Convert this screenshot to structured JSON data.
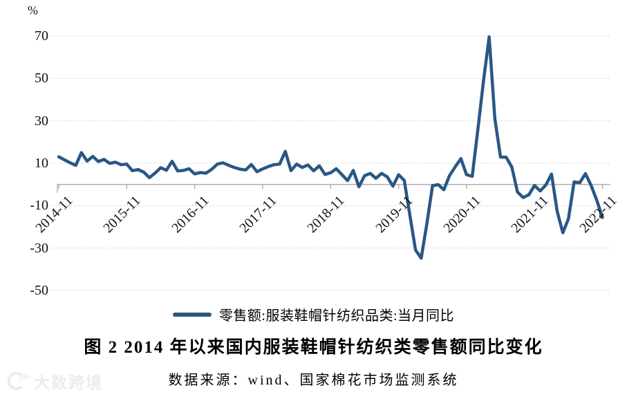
{
  "unit_label": "%",
  "legend": {
    "label": "零售额:服装鞋帽针纺织品类:当月同比"
  },
  "title": "图 2  2014 年以来国内服装鞋帽针纺织类零售额同比变化",
  "source": "数据来源：wind、国家棉花市场监测系统",
  "watermark": {
    "logo": "k100-logo",
    "text": "大数跨境"
  },
  "colors": {
    "line": "#2a5784",
    "grid": "#c4c4c4",
    "axis": "#aaaaaa",
    "text": "#111111",
    "watermark": "#ececec"
  },
  "chart_data": {
    "type": "line",
    "title": "图 2  2014 年以来国内服装鞋帽针纺织类零售额同比变化",
    "ylabel": "%",
    "ylim": [
      -50,
      70
    ],
    "y_ticks": [
      70,
      50,
      30,
      10,
      -10,
      -30,
      -50
    ],
    "x_tick_labels": [
      "2014-11",
      "2015-11",
      "2016-11",
      "2017-11",
      "2018-11",
      "2019-11",
      "2020-11",
      "2021-11",
      "2022-11"
    ],
    "grid": "horizontal-dotted",
    "legend_position": "bottom",
    "series": [
      {
        "name": "零售额:服装鞋帽针纺织品类:当月同比",
        "color": "#2a5784",
        "x": [
          "2014-11",
          "2014-12",
          "2015-01",
          "2015-02",
          "2015-03",
          "2015-04",
          "2015-05",
          "2015-06",
          "2015-07",
          "2015-08",
          "2015-09",
          "2015-10",
          "2015-11",
          "2015-12",
          "2016-01",
          "2016-02",
          "2016-03",
          "2016-04",
          "2016-05",
          "2016-06",
          "2016-07",
          "2016-08",
          "2016-09",
          "2016-10",
          "2016-11",
          "2016-12",
          "2017-01",
          "2017-02",
          "2017-03",
          "2017-04",
          "2017-05",
          "2017-06",
          "2017-07",
          "2017-08",
          "2017-09",
          "2017-10",
          "2017-11",
          "2017-12",
          "2018-01",
          "2018-02",
          "2018-03",
          "2018-04",
          "2018-05",
          "2018-06",
          "2018-07",
          "2018-08",
          "2018-09",
          "2018-10",
          "2018-11",
          "2018-12",
          "2019-01",
          "2019-02",
          "2019-03",
          "2019-04",
          "2019-05",
          "2019-06",
          "2019-07",
          "2019-08",
          "2019-09",
          "2019-10",
          "2019-11",
          "2019-12",
          "2020-01",
          "2020-02",
          "2020-03",
          "2020-04",
          "2020-05",
          "2020-06",
          "2020-07",
          "2020-08",
          "2020-09",
          "2020-10",
          "2020-11",
          "2020-12",
          "2021-01",
          "2021-02",
          "2021-03",
          "2021-04",
          "2021-05",
          "2021-06",
          "2021-07",
          "2021-08",
          "2021-09",
          "2021-10",
          "2021-11",
          "2021-12",
          "2022-01",
          "2022-02",
          "2022-03",
          "2022-04",
          "2022-05",
          "2022-06",
          "2022-07",
          "2022-08",
          "2022-09",
          "2022-10",
          "2022-11"
        ],
        "values": [
          13.0,
          11.6,
          10.2,
          9.0,
          15.0,
          11.0,
          13.2,
          10.8,
          11.8,
          9.9,
          10.5,
          9.3,
          9.6,
          6.5,
          7.0,
          5.8,
          3.2,
          5.3,
          7.9,
          6.7,
          10.9,
          6.4,
          6.6,
          7.4,
          5.0,
          5.6,
          5.3,
          7.1,
          9.6,
          10.2,
          9.0,
          8.0,
          7.2,
          6.8,
          9.4,
          6.0,
          7.3,
          8.4,
          9.3,
          9.6,
          15.6,
          6.5,
          9.6,
          8.0,
          9.2,
          6.4,
          8.8,
          4.7,
          5.5,
          7.4,
          4.6,
          1.8,
          6.6,
          -1.1,
          4.1,
          5.2,
          2.9,
          5.2,
          3.6,
          -0.8,
          4.6,
          1.9,
          -14.5,
          -30.9,
          -34.8,
          -18.5,
          -0.6,
          -0.1,
          -2.5,
          4.2,
          8.3,
          12.2,
          4.6,
          3.8,
          26.0,
          49.0,
          69.6,
          31.2,
          12.9,
          12.8,
          8.2,
          -3.6,
          -6.2,
          -4.9,
          -0.5,
          -3.1,
          -0.3,
          4.9,
          -12.7,
          -22.8,
          -16.2,
          1.2,
          0.8,
          5.1,
          -0.5,
          -7.5,
          -15.6
        ]
      }
    ]
  }
}
